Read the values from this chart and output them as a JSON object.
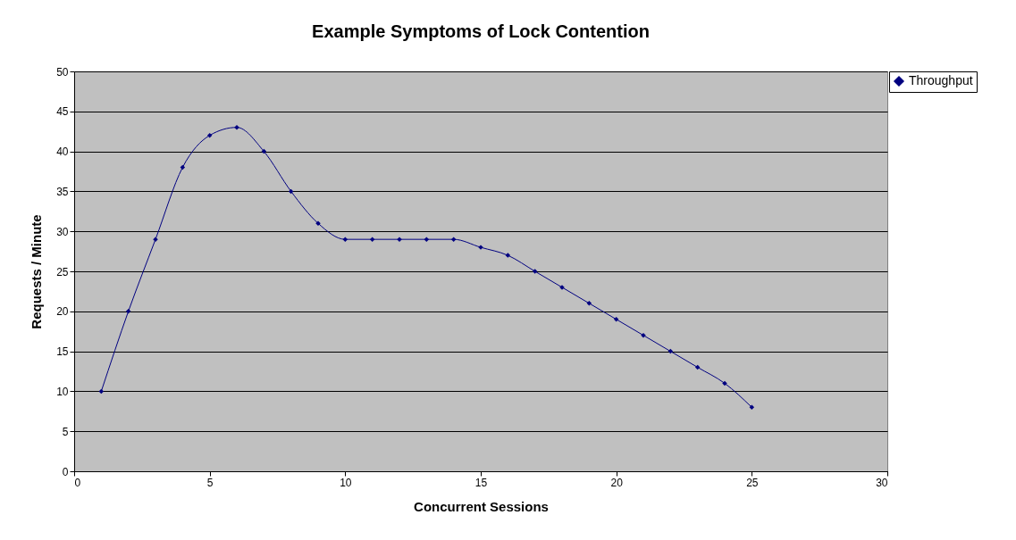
{
  "chart_data": {
    "type": "line",
    "title": "Example Symptoms of Lock Contention",
    "xlabel": "Concurrent Sessions",
    "ylabel": "Requests / Minute",
    "x": [
      1,
      2,
      3,
      4,
      5,
      6,
      7,
      8,
      9,
      10,
      11,
      12,
      13,
      14,
      15,
      16,
      17,
      18,
      19,
      20,
      21,
      22,
      23,
      24,
      25
    ],
    "series": [
      {
        "name": "Throughput",
        "color": "#000080",
        "values": [
          10,
          20,
          29,
          38,
          42,
          43,
          40,
          35,
          31,
          29,
          29,
          29,
          29,
          29,
          28,
          27,
          25,
          23,
          21,
          19,
          17,
          15,
          13,
          11,
          8
        ]
      }
    ],
    "xlim": [
      0,
      30
    ],
    "xticks": [
      0,
      5,
      10,
      15,
      20,
      25,
      30
    ],
    "ylim": [
      0,
      50
    ],
    "yticks": [
      0,
      5,
      10,
      15,
      20,
      25,
      30,
      35,
      40,
      45,
      50
    ],
    "grid": "y",
    "legend": "right",
    "marker": "diamond",
    "line_style": "solid"
  }
}
